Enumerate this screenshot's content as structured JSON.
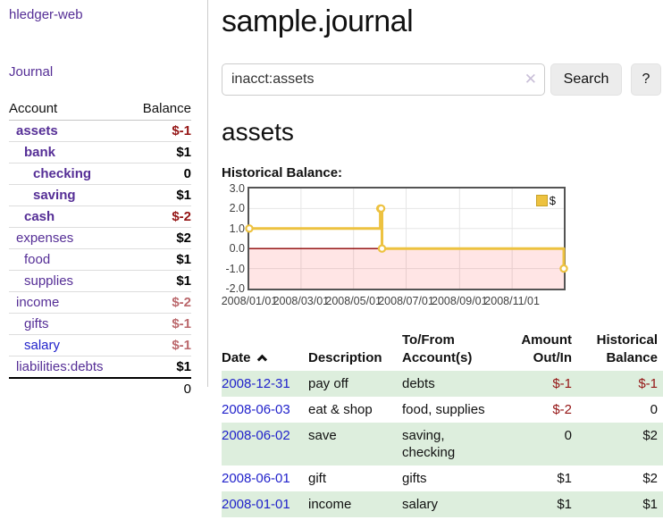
{
  "sidebar": {
    "brand": "hledger-web",
    "nav": {
      "journal": "Journal"
    },
    "accounts_table": {
      "headers": {
        "account": "Account",
        "balance": "Balance"
      },
      "rows": [
        {
          "name": "assets",
          "indent": 1,
          "bold": true,
          "balance": "$-1",
          "balance_tone": "negative-strong"
        },
        {
          "name": "bank",
          "indent": 2,
          "bold": true,
          "balance": "$1",
          "balance_tone": "positive"
        },
        {
          "name": "checking",
          "indent": 3,
          "bold": true,
          "balance": "0",
          "balance_tone": "positive"
        },
        {
          "name": "saving",
          "indent": 3,
          "bold": true,
          "balance": "$1",
          "balance_tone": "positive"
        },
        {
          "name": "cash",
          "indent": 2,
          "bold": true,
          "balance": "$-2",
          "balance_tone": "negative-strong"
        },
        {
          "name": "expenses",
          "indent": 1,
          "bold": false,
          "balance": "$2",
          "balance_tone": "positive"
        },
        {
          "name": "food",
          "indent": 2,
          "bold": false,
          "balance": "$1",
          "balance_tone": "positive"
        },
        {
          "name": "supplies",
          "indent": 2,
          "bold": false,
          "balance": "$1",
          "balance_tone": "positive"
        },
        {
          "name": "income",
          "indent": 1,
          "bold": false,
          "balance": "$-2",
          "balance_tone": "negative-soft"
        },
        {
          "name": "gifts",
          "indent": 2,
          "bold": false,
          "balance": "$-1",
          "balance_tone": "negative-soft"
        },
        {
          "name": "salary",
          "indent": 2,
          "bold": false,
          "balance": "$-1",
          "balance_tone": "negative-soft",
          "link_tone": "blue"
        },
        {
          "name": "liabilities:debts",
          "indent": 1,
          "bold": false,
          "balance": "$1",
          "balance_tone": "positive"
        }
      ],
      "total": "0"
    }
  },
  "header": {
    "title": "sample.journal"
  },
  "search": {
    "query": "inacct:assets",
    "clear_icon": "close-x",
    "button": "Search",
    "help_button": "?"
  },
  "account_page": {
    "title": "assets",
    "chart_label": "Historical Balance:"
  },
  "chart_data": {
    "type": "line",
    "title": "Historical Balance",
    "step": true,
    "series": [
      {
        "name": "$",
        "color": "#edc240",
        "points": [
          {
            "date": "2008-01-01",
            "x": 0,
            "y": 1
          },
          {
            "date": "2008-06-01",
            "x": 152,
            "y": 2
          },
          {
            "date": "2008-06-02",
            "x": 153,
            "y": 2
          },
          {
            "date": "2008-06-03",
            "x": 154,
            "y": 0
          },
          {
            "date": "2008-12-31",
            "x": 365,
            "y": -1
          }
        ]
      }
    ],
    "x_ticks": [
      {
        "label": "2008/01/01",
        "x": 0
      },
      {
        "label": "2008/03/01",
        "x": 60
      },
      {
        "label": "2008/05/01",
        "x": 121
      },
      {
        "label": "2008/07/01",
        "x": 182
      },
      {
        "label": "2008/09/01",
        "x": 244
      },
      {
        "label": "2008/11/01",
        "x": 305
      }
    ],
    "y_ticks": [
      "3.0",
      "2.0",
      "1.0",
      "0.0",
      "-1.0",
      "-2.0"
    ],
    "xlim": [
      0,
      365
    ],
    "ylim": [
      -2,
      3
    ],
    "grid": true,
    "legend": {
      "label": "$",
      "position": "top-right"
    },
    "negative_region_color": "rgba(255,0,0,0.10)",
    "zero_line_color": "#8b0000"
  },
  "transactions": {
    "headers": {
      "date": "Date",
      "sort_icon": "chevron-up",
      "description": "Description",
      "tofrom": "To/From Account(s)",
      "amount": "Amount Out/In",
      "balance": "Historical Balance"
    },
    "rows": [
      {
        "date": "2008-12-31",
        "description": "pay off",
        "accounts": "debts",
        "amount": "$-1",
        "balance": "$-1"
      },
      {
        "date": "2008-06-03",
        "description": "eat & shop",
        "accounts": "food, supplies",
        "amount": "$-2",
        "balance": "0"
      },
      {
        "date": "2008-06-02",
        "description": "save",
        "accounts": "saving, checking",
        "amount": "0",
        "balance": "$2"
      },
      {
        "date": "2008-06-01",
        "description": "gift",
        "accounts": "gifts",
        "amount": "$1",
        "balance": "$2"
      },
      {
        "date": "2008-01-01",
        "description": "income",
        "accounts": "salary",
        "amount": "$1",
        "balance": "$1"
      }
    ]
  }
}
